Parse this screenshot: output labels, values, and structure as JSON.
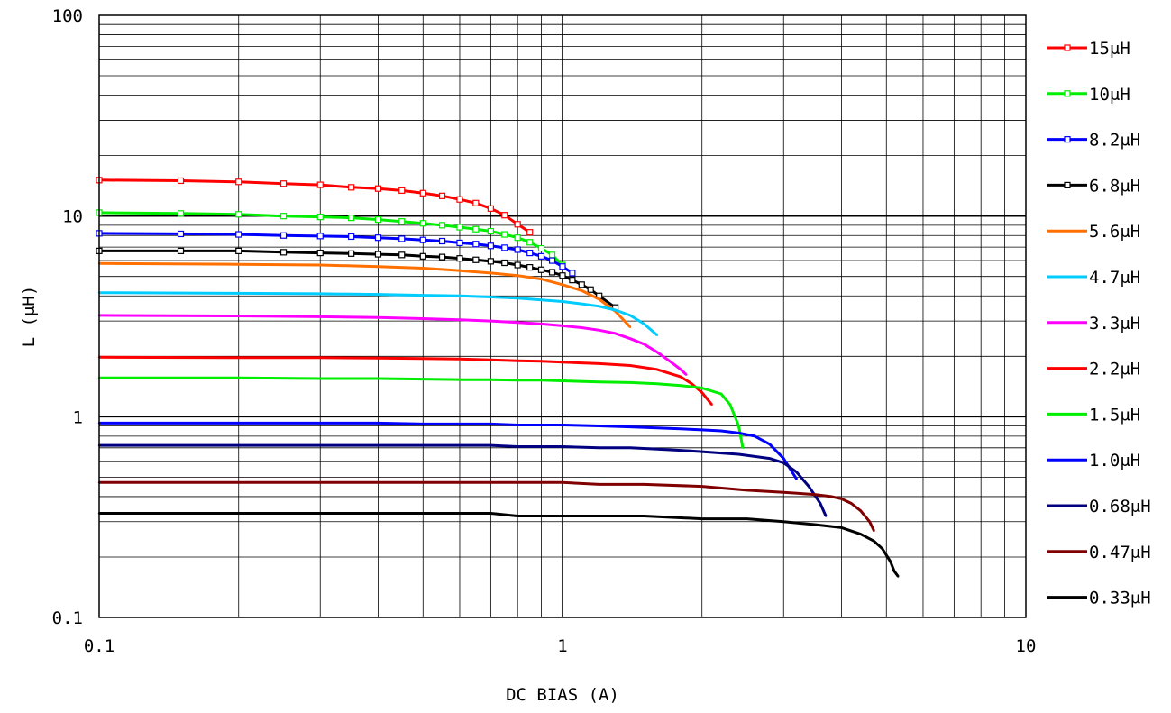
{
  "chart_data": {
    "type": "line",
    "title": "",
    "xlabel": "DC BIAS (A)",
    "ylabel": "L (μH)",
    "xscale": "log",
    "yscale": "log",
    "xlim": [
      0.1,
      10
    ],
    "ylim": [
      0.1,
      100
    ],
    "x_ticks": [
      {
        "v": 0.1,
        "label": "0.1"
      },
      {
        "v": 1,
        "label": "1"
      },
      {
        "v": 10,
        "label": "10"
      }
    ],
    "y_ticks": [
      {
        "v": 100,
        "label": "100"
      },
      {
        "v": 10,
        "label": "10"
      },
      {
        "v": 1,
        "label": "1"
      },
      {
        "v": 0.1,
        "label": "0.1"
      }
    ],
    "grid": true,
    "legend_position": "right",
    "series": [
      {
        "name": "15μH",
        "color": "#ff0000",
        "marker": "square",
        "x": [
          0.1,
          0.15,
          0.2,
          0.25,
          0.3,
          0.35,
          0.4,
          0.45,
          0.5,
          0.55,
          0.6,
          0.65,
          0.7,
          0.75,
          0.8,
          0.85
        ],
        "y": [
          15.1,
          15.0,
          14.8,
          14.5,
          14.3,
          13.9,
          13.7,
          13.4,
          13.0,
          12.6,
          12.1,
          11.6,
          10.9,
          10.1,
          9.1,
          8.3
        ]
      },
      {
        "name": "10μH",
        "color": "#00ee00",
        "marker": "square",
        "x": [
          0.1,
          0.15,
          0.2,
          0.25,
          0.3,
          0.35,
          0.4,
          0.45,
          0.5,
          0.55,
          0.6,
          0.65,
          0.7,
          0.75,
          0.8,
          0.85,
          0.9,
          0.95,
          1.0
        ],
        "y": [
          10.4,
          10.3,
          10.2,
          10.0,
          9.9,
          9.8,
          9.6,
          9.4,
          9.2,
          9.0,
          8.8,
          8.6,
          8.4,
          8.1,
          7.8,
          7.4,
          6.9,
          6.4,
          5.7
        ]
      },
      {
        "name": "8.2μH",
        "color": "#0000ff",
        "marker": "square",
        "x": [
          0.1,
          0.15,
          0.2,
          0.25,
          0.3,
          0.35,
          0.4,
          0.45,
          0.5,
          0.55,
          0.6,
          0.65,
          0.7,
          0.75,
          0.8,
          0.85,
          0.9,
          0.95,
          1.0,
          1.05
        ],
        "y": [
          8.2,
          8.15,
          8.1,
          8.0,
          7.95,
          7.9,
          7.8,
          7.7,
          7.6,
          7.5,
          7.35,
          7.25,
          7.1,
          6.95,
          6.8,
          6.55,
          6.3,
          6.0,
          5.6,
          5.2
        ]
      },
      {
        "name": "6.8μH",
        "color": "#000000",
        "marker": "square",
        "x": [
          0.1,
          0.15,
          0.2,
          0.25,
          0.3,
          0.35,
          0.4,
          0.45,
          0.5,
          0.55,
          0.6,
          0.65,
          0.7,
          0.75,
          0.8,
          0.85,
          0.9,
          0.95,
          1.0,
          1.05,
          1.1,
          1.15,
          1.2,
          1.3
        ],
        "y": [
          6.7,
          6.7,
          6.7,
          6.6,
          6.55,
          6.5,
          6.45,
          6.4,
          6.3,
          6.25,
          6.15,
          6.05,
          5.95,
          5.85,
          5.7,
          5.55,
          5.4,
          5.25,
          5.05,
          4.8,
          4.55,
          4.3,
          4.0,
          3.5
        ]
      },
      {
        "name": "5.6μH",
        "color": "#ff7000",
        "marker": "none",
        "x": [
          0.1,
          0.2,
          0.3,
          0.4,
          0.5,
          0.6,
          0.7,
          0.8,
          0.9,
          1.0,
          1.1,
          1.2,
          1.3,
          1.4
        ],
        "y": [
          5.8,
          5.75,
          5.7,
          5.6,
          5.5,
          5.35,
          5.2,
          5.05,
          4.85,
          4.55,
          4.25,
          3.85,
          3.35,
          2.8
        ]
      },
      {
        "name": "4.7μH",
        "color": "#00ccff",
        "marker": "none",
        "x": [
          0.1,
          0.2,
          0.3,
          0.4,
          0.5,
          0.6,
          0.7,
          0.8,
          0.9,
          1.0,
          1.1,
          1.2,
          1.3,
          1.4,
          1.5,
          1.6
        ],
        "y": [
          4.15,
          4.12,
          4.1,
          4.07,
          4.03,
          4.0,
          3.95,
          3.9,
          3.82,
          3.75,
          3.65,
          3.55,
          3.4,
          3.2,
          2.9,
          2.55
        ]
      },
      {
        "name": "3.3μH",
        "color": "#ff00ff",
        "marker": "none",
        "x": [
          0.1,
          0.2,
          0.3,
          0.4,
          0.5,
          0.6,
          0.7,
          0.8,
          0.9,
          1.0,
          1.1,
          1.2,
          1.3,
          1.4,
          1.5,
          1.6,
          1.7,
          1.8,
          1.85
        ],
        "y": [
          3.2,
          3.18,
          3.15,
          3.12,
          3.08,
          3.04,
          3.0,
          2.95,
          2.9,
          2.84,
          2.78,
          2.7,
          2.6,
          2.45,
          2.3,
          2.1,
          1.9,
          1.72,
          1.62
        ]
      },
      {
        "name": "2.2μH",
        "color": "#ff0000",
        "marker": "none",
        "x": [
          0.1,
          0.2,
          0.3,
          0.4,
          0.5,
          0.6,
          0.7,
          0.8,
          0.9,
          1.0,
          1.2,
          1.4,
          1.6,
          1.8,
          1.9,
          2.0,
          2.1
        ],
        "y": [
          1.98,
          1.97,
          1.97,
          1.96,
          1.95,
          1.94,
          1.92,
          1.9,
          1.89,
          1.87,
          1.84,
          1.8,
          1.72,
          1.58,
          1.46,
          1.32,
          1.15
        ]
      },
      {
        "name": "1.5μH",
        "color": "#00ee00",
        "marker": "none",
        "x": [
          0.1,
          0.2,
          0.3,
          0.4,
          0.5,
          0.6,
          0.7,
          0.8,
          0.9,
          1.0,
          1.2,
          1.4,
          1.6,
          1.8,
          2.0,
          2.2,
          2.3,
          2.4,
          2.45
        ],
        "y": [
          1.56,
          1.56,
          1.55,
          1.55,
          1.54,
          1.53,
          1.53,
          1.52,
          1.52,
          1.51,
          1.49,
          1.48,
          1.46,
          1.43,
          1.39,
          1.3,
          1.15,
          0.9,
          0.7
        ]
      },
      {
        "name": "1.0μH",
        "color": "#0000ff",
        "marker": "none",
        "x": [
          0.1,
          0.2,
          0.3,
          0.4,
          0.5,
          0.6,
          0.7,
          0.8,
          0.9,
          1.0,
          1.2,
          1.4,
          1.6,
          1.8,
          2.0,
          2.2,
          2.4,
          2.6,
          2.8,
          3.0,
          3.2
        ],
        "y": [
          0.93,
          0.93,
          0.93,
          0.93,
          0.92,
          0.92,
          0.92,
          0.91,
          0.91,
          0.91,
          0.9,
          0.89,
          0.88,
          0.87,
          0.86,
          0.85,
          0.83,
          0.8,
          0.73,
          0.62,
          0.49
        ]
      },
      {
        "name": "0.68μH",
        "color": "#000080",
        "marker": "none",
        "x": [
          0.1,
          0.2,
          0.3,
          0.4,
          0.5,
          0.6,
          0.7,
          0.8,
          0.9,
          1.0,
          1.2,
          1.4,
          1.6,
          1.8,
          2.0,
          2.4,
          2.8,
          3.0,
          3.2,
          3.4,
          3.6,
          3.7
        ],
        "y": [
          0.72,
          0.72,
          0.72,
          0.72,
          0.72,
          0.72,
          0.72,
          0.71,
          0.71,
          0.71,
          0.7,
          0.7,
          0.69,
          0.68,
          0.67,
          0.65,
          0.62,
          0.59,
          0.53,
          0.45,
          0.37,
          0.32
        ]
      },
      {
        "name": "0.47μH",
        "color": "#800000",
        "marker": "none",
        "x": [
          0.1,
          0.2,
          0.3,
          0.4,
          0.5,
          0.6,
          0.7,
          0.8,
          0.9,
          1.0,
          1.2,
          1.5,
          2.0,
          2.5,
          3.0,
          3.5,
          3.8,
          4.0,
          4.2,
          4.4,
          4.6,
          4.7
        ],
        "y": [
          0.47,
          0.47,
          0.47,
          0.47,
          0.47,
          0.47,
          0.47,
          0.47,
          0.47,
          0.47,
          0.46,
          0.46,
          0.45,
          0.43,
          0.42,
          0.41,
          0.4,
          0.39,
          0.37,
          0.34,
          0.3,
          0.27
        ]
      },
      {
        "name": "0.33μH",
        "color": "#000000",
        "marker": "none",
        "x": [
          0.1,
          0.2,
          0.3,
          0.4,
          0.5,
          0.6,
          0.7,
          0.8,
          1.0,
          1.5,
          2.0,
          2.5,
          3.0,
          3.5,
          4.0,
          4.4,
          4.7,
          4.9,
          5.1,
          5.2,
          5.3
        ],
        "y": [
          0.33,
          0.33,
          0.33,
          0.33,
          0.33,
          0.33,
          0.33,
          0.32,
          0.32,
          0.32,
          0.31,
          0.31,
          0.3,
          0.29,
          0.28,
          0.26,
          0.24,
          0.22,
          0.19,
          0.17,
          0.16
        ]
      }
    ]
  }
}
